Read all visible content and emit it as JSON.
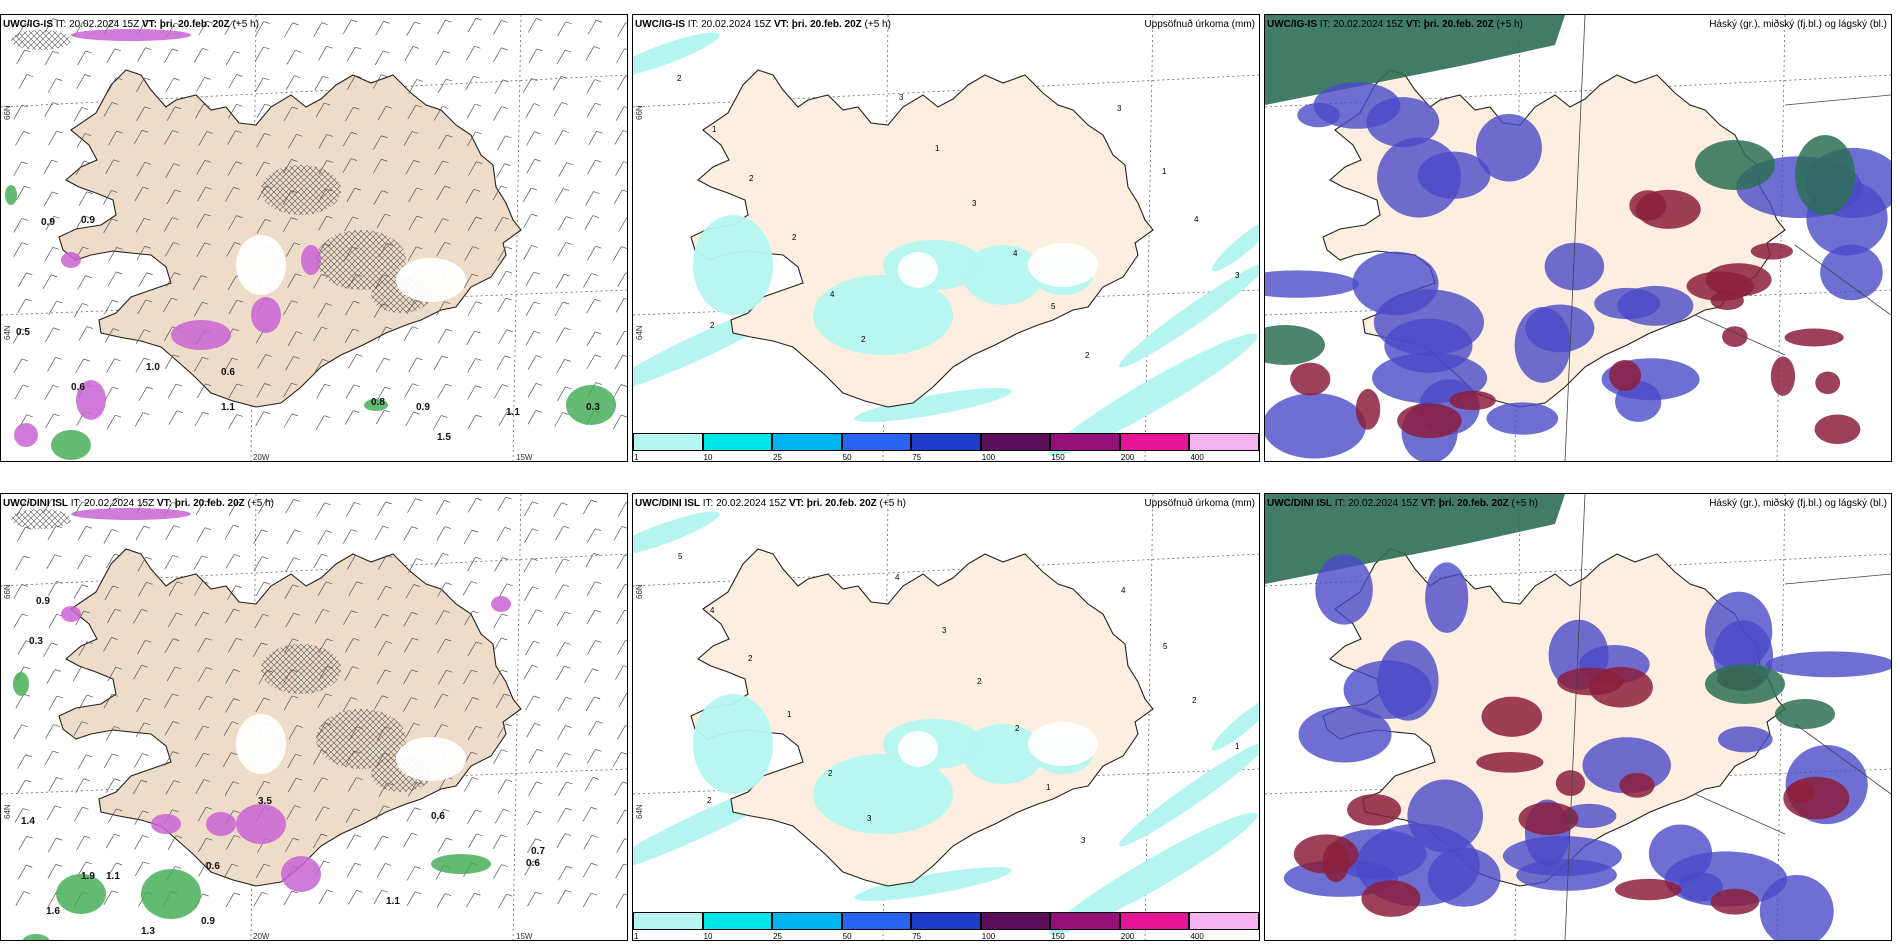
{
  "rows": [
    {
      "model_label": "UWC/IG-IS",
      "panels": [
        {
          "kind": "wind",
          "model": "UWC/IG-IS",
          "it": "IT: 20.02.2024 15Z",
          "vt": "VT: þri. 20.feb. 20Z",
          "lead": "(+5 h)",
          "right": "",
          "lat_labels": [
            "66N",
            "64N"
          ],
          "lon_labels": [
            "20W",
            "15W"
          ]
        },
        {
          "kind": "precip",
          "model": "UWC/IG-IS",
          "it": "IT: 20.02.2024 15Z",
          "vt": "VT: þri. 20.feb. 20Z",
          "lead": "(+5 h)",
          "right": "Uppsöfnuð úrkoma (mm)",
          "lat_labels": [
            "66N",
            "64N"
          ],
          "lon_labels": []
        },
        {
          "kind": "cloud",
          "model": "UWC/IG-IS",
          "it": "IT: 20.02.2024 15Z",
          "vt": "VT: þri. 20.feb. 20Z",
          "lead": "(+5 h)",
          "right": "Háský (gr.), miðský (fj.bl.) og lágský (bl.)",
          "lat_labels": [],
          "lon_labels": []
        }
      ]
    },
    {
      "model_label": "UWC/DINI ISL",
      "panels": [
        {
          "kind": "wind",
          "model": "UWC/DINI ISL",
          "it": "IT: 20.02.2024 15Z",
          "vt": "VT: þri. 20.feb. 20Z",
          "lead": "(+5 h)",
          "right": "",
          "lat_labels": [
            "66N",
            "64N"
          ],
          "lon_labels": [
            "20W",
            "15W"
          ]
        },
        {
          "kind": "precip",
          "model": "UWC/DINI ISL",
          "it": "IT: 20.02.2024 15Z",
          "vt": "VT: þri. 20.feb. 20Z",
          "lead": "(+5 h)",
          "right": "Uppsöfnuð úrkoma (mm)",
          "lat_labels": [
            "66N",
            "64N"
          ],
          "lon_labels": []
        },
        {
          "kind": "cloud",
          "model": "UWC/DINI ISL",
          "it": "IT: 20.02.2024 15Z",
          "vt": "VT: þri. 20.feb. 20Z",
          "lead": "(+5 h)",
          "right": "Háský (gr.), miðský (fj.bl.) og lágský (bl.)",
          "lat_labels": [],
          "lon_labels": []
        }
      ]
    }
  ],
  "precip_colorbar": {
    "labels": [
      "1",
      "10",
      "25",
      "50",
      "75",
      "100",
      "150",
      "200",
      "400"
    ],
    "colors": [
      "#b4f5f0",
      "#00e6e6",
      "#00b4f0",
      "#2864f0",
      "#1e3cc8",
      "#5a0f5a",
      "#96107a",
      "#e61496",
      "#f5b4f0"
    ]
  },
  "wind_values_top": [
    "0.9",
    "0.9",
    "0.5",
    "1.0",
    "0.6",
    "0.6",
    "0.8",
    "0.9",
    "1.1",
    "1.5",
    "1.1",
    "0.3"
  ],
  "wind_values_bottom": [
    "0.9",
    "0.3",
    "1.4",
    "1.6",
    "1.9",
    "1.1",
    "3.5",
    "0.6",
    "0.6",
    "0.7",
    "0.6",
    "1.1",
    "0.9",
    "1.3"
  ],
  "precip_values_top": [
    "2",
    "1",
    "2",
    "2",
    "4",
    "2",
    "3",
    "1",
    "3",
    "4",
    "5",
    "2",
    "3",
    "1",
    "4",
    "3",
    "2"
  ],
  "precip_values_bottom": [
    "5",
    "4",
    "2",
    "1",
    "2",
    "3",
    "4",
    "3",
    "2",
    "2",
    "1",
    "3",
    "4",
    "5",
    "2",
    "1",
    "2"
  ],
  "colors": {
    "land": "#fdeee0",
    "coast": "#222222",
    "precip_light": "#b4f5f0",
    "wind_purple": "#c864d2",
    "wind_green": "#3caa50",
    "cloud_high": "#2d6e55",
    "cloud_mid": "#4a4ac8",
    "cloud_low": "#8c1e3c"
  }
}
